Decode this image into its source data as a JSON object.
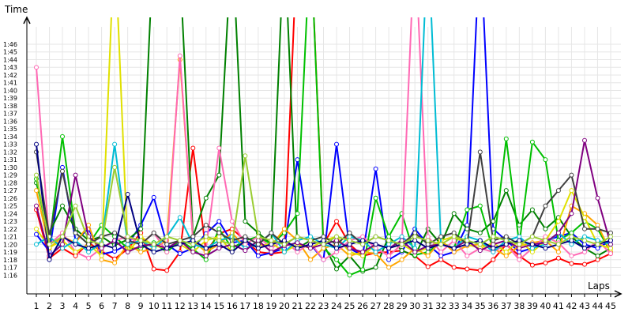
{
  "chart_data": {
    "type": "line",
    "ylabel": "Time",
    "xlabel": "Laps",
    "x": [
      1,
      2,
      3,
      4,
      5,
      6,
      7,
      8,
      9,
      10,
      11,
      12,
      13,
      14,
      15,
      16,
      17,
      18,
      19,
      20,
      21,
      22,
      23,
      24,
      25,
      26,
      27,
      28,
      29,
      30,
      31,
      32,
      33,
      34,
      35,
      36,
      37,
      38,
      39,
      40,
      41,
      42,
      43,
      44,
      45
    ],
    "xlim": [
      1,
      45
    ],
    "ylim_seconds": [
      74,
      111
    ],
    "y_ticks": [
      "1:16",
      "1:17",
      "1:18",
      "1:19",
      "1:20",
      "1:21",
      "1:22",
      "1:23",
      "1:24",
      "1:25",
      "1:26",
      "1:27",
      "1:28",
      "1:29",
      "1:30",
      "1:31",
      "1:32",
      "1:33",
      "1:34",
      "1:35",
      "1:36",
      "1:37",
      "1:38",
      "1:39",
      "1:40",
      "1:41",
      "1:42",
      "1:43",
      "1:44",
      "1:45",
      "1:46"
    ],
    "grid": true,
    "legend": "none",
    "series": [
      {
        "color": "#ff0000",
        "values": [
          84.5,
          78.2,
          79.5,
          78.5,
          80.2,
          79.1,
          78.1,
          79.4,
          81.5,
          76.8,
          76.6,
          79.0,
          92.5,
          79.0,
          81.4,
          82.0,
          80.5,
          79.0,
          78.8,
          79.0,
          120,
          120,
          80.0,
          83.0,
          80.0,
          78.5,
          78.9,
          79.0,
          79.2,
          78.5,
          77.1,
          78.0,
          77.0,
          76.8,
          76.6,
          78.0,
          80.0,
          78.5,
          77.3,
          77.6,
          78.2,
          77.5,
          77.4,
          78.0,
          78.8
        ]
      },
      {
        "color": "#0000ff",
        "values": [
          81.3,
          79.1,
          90.0,
          80.5,
          82.0,
          78.7,
          79.1,
          80.0,
          82.5,
          86.1,
          80.0,
          78.8,
          79.5,
          81.4,
          83.0,
          80.2,
          80.5,
          78.5,
          78.9,
          79.5,
          91.0,
          80.0,
          78.0,
          93.0,
          79.5,
          78.5,
          89.8,
          78.0,
          79.0,
          82.0,
          80.0,
          78.5,
          79.0,
          82.5,
          120,
          82.0,
          80.5,
          79.0,
          79.5,
          80.5,
          81.0,
          81.5,
          80.0,
          79.5,
          80.5
        ]
      },
      {
        "color": "#008000",
        "values": [
          88.0,
          81.5,
          85.0,
          82.0,
          80.5,
          81.0,
          79.9,
          80.6,
          82.0,
          120,
          116.5,
          116.0,
          81.0,
          86.0,
          89.0,
          120,
          83.0,
          81.5,
          80.0,
          120,
          79.5,
          80.5,
          80.0,
          76.8,
          78.5,
          76.5,
          77.0,
          81.0,
          79.2,
          78.5,
          82.0,
          80.0,
          84.0,
          82.0,
          81.5,
          83.0,
          87.0,
          82.5,
          84.5,
          82.0,
          83.5,
          81.0,
          79.5,
          78.5,
          79.5
        ]
      },
      {
        "color": "#00c000",
        "values": [
          88.5,
          80.0,
          94.0,
          81.5,
          80.0,
          82.5,
          81.0,
          79.5,
          79.5,
          80.2,
          79.0,
          80.5,
          79.4,
          78.0,
          82.0,
          79.5,
          80.5,
          81.0,
          80.0,
          81.5,
          84.0,
          120,
          79.5,
          78.0,
          76.0,
          76.7,
          86.0,
          81.0,
          84.0,
          78.6,
          79.0,
          80.2,
          79.5,
          84.5,
          85.0,
          79.2,
          93.7,
          80.0,
          93.3,
          91.0,
          80.5,
          81.5,
          83.0,
          82.0,
          79.0
        ]
      },
      {
        "color": "#ffa500",
        "values": [
          87.0,
          79.5,
          81.0,
          80.2,
          82.5,
          78.0,
          77.6,
          80.0,
          79.0,
          79.5,
          80.5,
          104.0,
          80.5,
          79.0,
          80.0,
          81.5,
          79.5,
          80.0,
          79.8,
          82.0,
          80.5,
          78.0,
          79.5,
          80.0,
          78.5,
          79.0,
          78.8,
          77.0,
          78.0,
          79.5,
          78.5,
          80.5,
          79.0,
          79.8,
          80.0,
          79.5,
          78.5,
          79.8,
          80.2,
          80.5,
          79.0,
          85.0,
          84.0,
          82.5,
          79.0
        ]
      },
      {
        "color": "#ff69b4",
        "values": [
          103.0,
          80.0,
          81.5,
          79.0,
          78.2,
          79.5,
          80.5,
          81.0,
          80.0,
          81.5,
          79.0,
          104.5,
          80.5,
          79.5,
          92.5,
          83.0,
          80.0,
          81.0,
          79.5,
          80.5,
          79.0,
          80.2,
          78.0,
          79.0,
          80.5,
          81.0,
          79.5,
          78.5,
          80.0,
          120,
          81.0,
          79.0,
          80.5,
          78.5,
          79.5,
          79.0,
          80.0,
          78.0,
          79.5,
          81.0,
          80.2,
          78.5,
          79.0,
          80.5,
          78.8
        ]
      },
      {
        "color": "#e0e000",
        "values": [
          82.0,
          79.6,
          80.5,
          79.0,
          80.0,
          78.5,
          120,
          79.0,
          81.0,
          79.8,
          79.5,
          80.0,
          79.0,
          80.5,
          81.0,
          79.0,
          80.5,
          79.5,
          80.2,
          79.0,
          80.0,
          79.5,
          80.5,
          81.0,
          79.0,
          78.5,
          80.0,
          79.5,
          80.0,
          79.0,
          79.5,
          80.5,
          81.0,
          80.0,
          79.5,
          80.2,
          79.0,
          80.5,
          79.0,
          80.5,
          83.0,
          87.0,
          83.5,
          80.0,
          79.5
        ]
      },
      {
        "color": "#00bcd4",
        "values": [
          80.0,
          81.0,
          79.5,
          80.5,
          79.0,
          80.2,
          93.0,
          80.0,
          80.5,
          79.5,
          81.0,
          83.5,
          80.0,
          79.5,
          80.5,
          81.0,
          79.5,
          80.0,
          81.5,
          79.0,
          80.5,
          81.0,
          80.0,
          79.5,
          81.0,
          80.5,
          79.0,
          80.0,
          81.0,
          79.5,
          120,
          80.0,
          79.5,
          81.0,
          80.5,
          79.0,
          80.5,
          81.0,
          79.5,
          80.0,
          81.5,
          80.0,
          81.0,
          80.5,
          80.0
        ]
      },
      {
        "color": "#800080",
        "values": [
          85.0,
          78.5,
          80.0,
          89.0,
          81.0,
          79.5,
          80.5,
          79.0,
          79.8,
          80.0,
          79.5,
          80.5,
          79.0,
          78.5,
          79.5,
          80.0,
          79.2,
          80.5,
          79.0,
          79.8,
          80.2,
          79.5,
          80.0,
          80.5,
          79.5,
          79.0,
          80.0,
          79.5,
          80.5,
          79.0,
          79.8,
          80.0,
          79.5,
          80.5,
          79.2,
          80.0,
          80.5,
          79.5,
          80.0,
          80.2,
          81.5,
          84.0,
          93.5,
          86.0,
          80.0
        ]
      },
      {
        "color": "#404040",
        "values": [
          92.0,
          81.0,
          89.5,
          81.5,
          80.0,
          81.0,
          81.5,
          80.5,
          80.0,
          81.5,
          80.0,
          80.5,
          81.0,
          82.5,
          81.5,
          80.5,
          81.0,
          80.0,
          81.5,
          80.0,
          81.0,
          80.5,
          81.0,
          80.0,
          81.5,
          80.0,
          81.0,
          80.5,
          80.0,
          81.5,
          80.0,
          81.0,
          81.5,
          80.0,
          92.0,
          80.5,
          81.0,
          80.0,
          81.0,
          85.0,
          87.0,
          89.0,
          82.0,
          82.0,
          81.5
        ]
      },
      {
        "color": "#000080",
        "values": [
          93.0,
          78.0,
          81.0,
          80.0,
          79.5,
          80.0,
          79.5,
          86.5,
          80.0,
          79.0,
          79.5,
          80.0,
          80.5,
          79.5,
          80.0,
          79.0,
          80.5,
          79.5,
          80.0,
          80.5,
          79.5,
          80.0,
          80.5,
          79.5,
          80.0,
          80.5,
          80.0,
          79.5,
          80.0,
          80.5,
          79.5,
          80.0,
          79.5,
          80.0,
          80.5,
          79.5,
          80.0,
          80.5,
          80.0,
          79.5,
          80.0,
          80.5,
          79.5,
          80.0,
          80.5
        ]
      },
      {
        "color": "#9acd32",
        "values": [
          89.0,
          80.0,
          81.0,
          85.0,
          80.5,
          80.0,
          90.0,
          81.0,
          80.5,
          80.0,
          81.0,
          80.5,
          80.0,
          81.0,
          80.5,
          80.0,
          91.5,
          81.0,
          80.5,
          80.0,
          81.0,
          80.5,
          80.0,
          81.0,
          80.5,
          80.0,
          81.0,
          80.5,
          80.0,
          81.0,
          80.5,
          80.0,
          81.0,
          80.5,
          80.0,
          81.0,
          80.5,
          80.0,
          81.0,
          80.5,
          80.0,
          81.0,
          80.5,
          80.0,
          81.0
        ]
      }
    ]
  }
}
